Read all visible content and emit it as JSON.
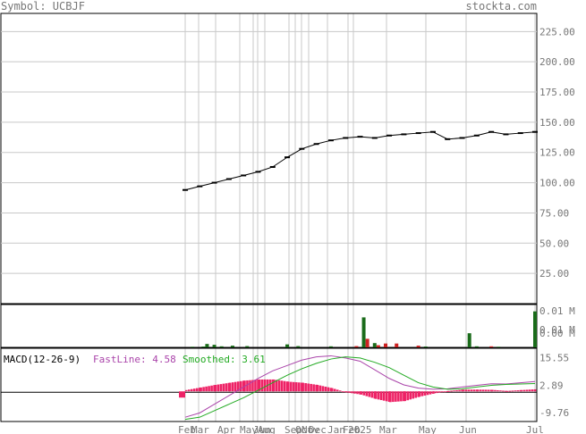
{
  "header": {
    "symbol_label": "Symbol: UCBJF",
    "site": "stockta.com"
  },
  "colors": {
    "grid": "#c8c8c8",
    "frame": "#000000",
    "price": "#000000",
    "volume": "#1a6b1a",
    "volume_down": "#cc2222",
    "fastline": "#aa44aa",
    "smoothed": "#22aa22",
    "histogram": "#ee2266",
    "label": "#777777"
  },
  "chart_data": [
    {
      "type": "line",
      "panel": "price",
      "y_ticks": [
        "25.00",
        "50.00",
        "75.00",
        "100.00",
        "125.00",
        "150.00",
        "175.00",
        "200.00",
        "225.00"
      ],
      "ylim": [
        0,
        240
      ],
      "x_ticks": [
        "Feb",
        "Mar",
        "Apr",
        "May",
        "Jun",
        "Aug",
        "Sep",
        "Oct",
        "Nov",
        "Dec",
        "Jan",
        "Feb",
        "2025",
        "Mar",
        "May",
        "Jun",
        "Jul"
      ],
      "x": [
        0,
        4,
        8,
        12,
        16,
        20,
        24,
        28,
        32,
        36,
        40,
        44,
        48,
        52,
        56,
        60,
        64,
        68,
        72,
        76,
        80,
        84,
        88,
        92,
        96
      ],
      "values": [
        94,
        97,
        100,
        103,
        106,
        109,
        113,
        121,
        128,
        132,
        135,
        137,
        138,
        137,
        139,
        140,
        141,
        142,
        136,
        137,
        139,
        142,
        140,
        141,
        142
      ]
    },
    {
      "type": "bar",
      "panel": "volume",
      "y_ticks": [
        "0.00 M",
        "0.01 M",
        "0.01 M"
      ],
      "ylim": [
        0,
        0.02
      ],
      "x": [
        2,
        5,
        6,
        8,
        10,
        13,
        17,
        28,
        31,
        40,
        47,
        49,
        50,
        52,
        53,
        55,
        58,
        64,
        66,
        78,
        80,
        84,
        86,
        96
      ],
      "values": [
        0.0003,
        0.0004,
        0.0016,
        0.0012,
        0.0005,
        0.0008,
        0.0006,
        0.0014,
        0.0006,
        0.0005,
        0.0006,
        0.014,
        0.004,
        0.002,
        0.001,
        0.0018,
        0.0018,
        0.0008,
        0.0004,
        0.0066,
        0.0005,
        0.0005,
        0.0003,
        0.0168
      ],
      "down": [
        false,
        false,
        false,
        false,
        false,
        false,
        false,
        false,
        false,
        false,
        true,
        false,
        true,
        false,
        true,
        true,
        true,
        true,
        false,
        false,
        false,
        true,
        false,
        false
      ]
    },
    {
      "type": "line",
      "panel": "macd",
      "title": "MACD(12-26-9)",
      "fast_label": "FastLine: 4.58",
      "smoothed_label": "Smoothed: 3.61",
      "y_ticks": [
        "15.55",
        "2.89",
        "-9.76"
      ],
      "ylim": [
        -14,
        20
      ],
      "x": [
        0,
        4,
        8,
        12,
        16,
        20,
        24,
        28,
        32,
        36,
        40,
        44,
        48,
        52,
        56,
        60,
        64,
        68,
        72,
        76,
        80,
        84,
        88,
        92,
        96
      ],
      "series": [
        {
          "name": "FastLine",
          "values": [
            -12,
            -10,
            -6,
            -2,
            2,
            6,
            9.5,
            12,
            14.5,
            16,
            16.5,
            15.5,
            14,
            10,
            6,
            3,
            1.5,
            1,
            1.2,
            2,
            2.8,
            3.5,
            3.4,
            4,
            4.58
          ]
        },
        {
          "name": "Smoothed",
          "values": [
            -13,
            -12,
            -9,
            -6,
            -3,
            0.5,
            4,
            7.5,
            10.5,
            13,
            15,
            16,
            15.5,
            13.5,
            11,
            7.5,
            4,
            2,
            1,
            1.2,
            2,
            2.8,
            3.2,
            3.4,
            3.61
          ]
        },
        {
          "name": "Histogram",
          "values": [
            0.6,
            1.8,
            3,
            4,
            5,
            5.5,
            5.5,
            4.5,
            4,
            3,
            1.5,
            -0.5,
            -1.5,
            -3.5,
            -5,
            -4.5,
            -2.5,
            -1,
            0.2,
            0.8,
            0.8,
            0.7,
            0.2,
            0.6,
            0.97
          ]
        }
      ]
    }
  ]
}
